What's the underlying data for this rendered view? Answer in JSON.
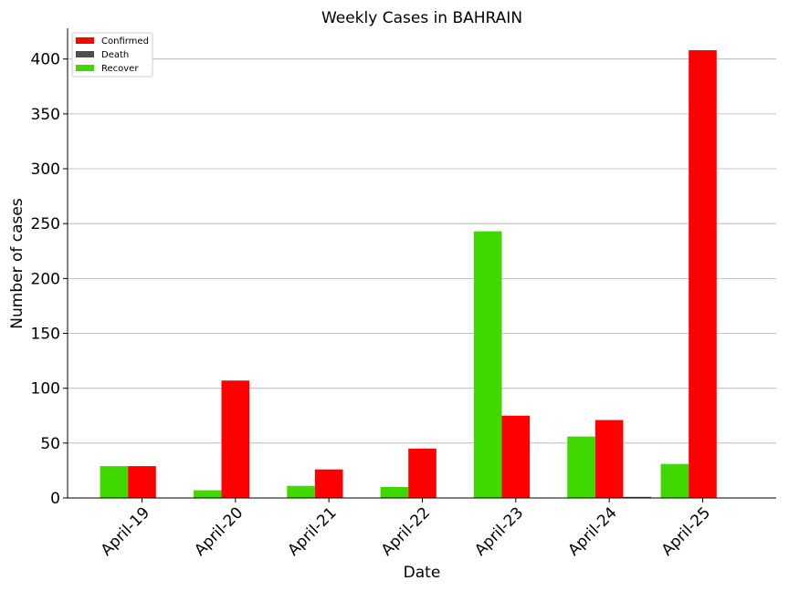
{
  "chart_data": {
    "type": "bar",
    "title": "Weekly Cases in BAHRAIN",
    "xlabel": "Date",
    "ylabel": "Number of cases",
    "categories": [
      "April-19",
      "April-20",
      "April-21",
      "April-22",
      "April-23",
      "April-24",
      "April-25"
    ],
    "series": [
      {
        "name": "Recover",
        "color": "#3fd900",
        "values": [
          29,
          7,
          11,
          10,
          243,
          56,
          31
        ]
      },
      {
        "name": "Confirmed",
        "color": "#ff0000",
        "values": [
          29,
          107,
          26,
          45,
          75,
          71,
          408
        ]
      },
      {
        "name": "Death",
        "color": "#4d4d4d",
        "values": [
          0,
          0,
          0,
          0,
          0,
          1,
          0
        ]
      }
    ],
    "legend_order": [
      "Confirmed",
      "Death",
      "Recover"
    ],
    "ylim": [
      0,
      428
    ],
    "yticks": [
      0,
      50,
      100,
      150,
      200,
      250,
      300,
      350,
      400
    ],
    "grid": "horizontal",
    "legend_position": "top-left"
  }
}
